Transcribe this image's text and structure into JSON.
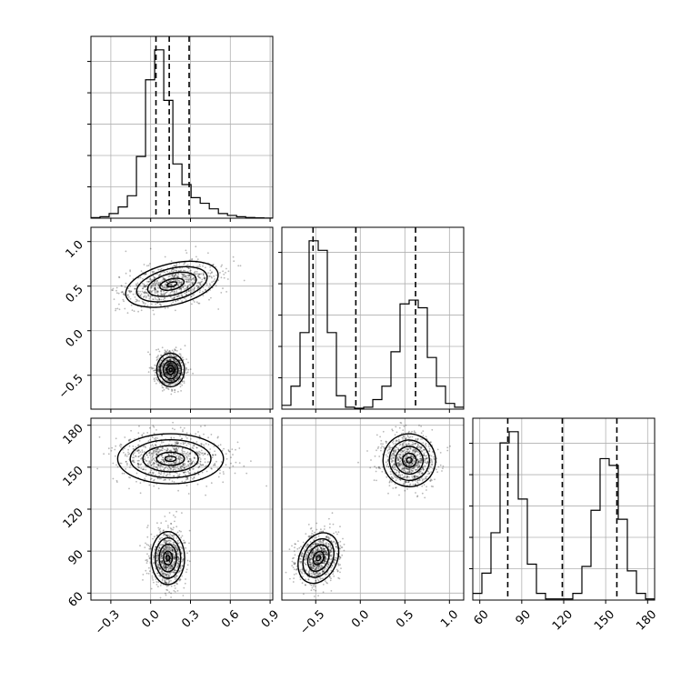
{
  "chart_data": {
    "type": "corner",
    "grid": true,
    "parameters": [
      {
        "index": 0,
        "range": [
          -0.45,
          0.92
        ],
        "ticks": [
          -0.3,
          0.0,
          0.3,
          0.6,
          0.9
        ],
        "tick_labels": [
          "−0.3",
          "0.0",
          "0.3",
          "0.6",
          "0.9"
        ],
        "quantiles": [
          0.04,
          0.14,
          0.29
        ],
        "histogram": {
          "bin_edges": [
            -0.45,
            -0.3814,
            -0.3128,
            -0.2442,
            -0.1756,
            -0.107,
            -0.0384,
            0.0302,
            0.0988,
            0.1674,
            0.236,
            0.3046,
            0.3732,
            0.4418,
            0.5104,
            0.579,
            0.6476,
            0.7162,
            0.7848,
            0.8534,
            0.922
          ],
          "counts": [
            0.3,
            0.8,
            2.5,
            6,
            12,
            33,
            74,
            90,
            63,
            29,
            18,
            11,
            8,
            5,
            2.5,
            1.5,
            0.8,
            0.4,
            0.2,
            0.1
          ]
        }
      },
      {
        "index": 1,
        "range": [
          -0.88,
          1.16
        ],
        "ticks": [
          -0.5,
          0.0,
          0.5,
          1.0
        ],
        "tick_labels": [
          "−0.5",
          "0.0",
          "0.5",
          "1.0"
        ],
        "quantiles": [
          -0.53,
          -0.05,
          0.62
        ],
        "histogram": {
          "bin_edges": [
            -0.88,
            -0.778,
            -0.676,
            -0.574,
            -0.472,
            -0.37,
            -0.268,
            -0.166,
            -0.064,
            0.038,
            0.14,
            0.242,
            0.344,
            0.446,
            0.548,
            0.65,
            0.752,
            0.854,
            0.956,
            1.058,
            1.16
          ],
          "counts": [
            2,
            12,
            40,
            88,
            83,
            40,
            7,
            1,
            0.5,
            1,
            5,
            12,
            30,
            55,
            57,
            53,
            27,
            12,
            3,
            1
          ]
        }
      },
      {
        "index": 2,
        "range": [
          55,
          185
        ],
        "ticks": [
          60,
          90,
          120,
          150,
          180
        ],
        "tick_labels": [
          "60",
          "90",
          "120",
          "150",
          "180"
        ],
        "quantiles": [
          80,
          119,
          158
        ],
        "histogram": {
          "bin_edges": [
            55,
            61.5,
            68,
            74.5,
            81,
            87.5,
            94,
            100.5,
            107,
            113.5,
            120,
            126.5,
            133,
            139.5,
            146,
            152.5,
            159,
            165.5,
            172,
            178.5,
            185
          ],
          "counts": [
            3,
            12,
            30,
            70,
            75,
            45,
            16,
            3,
            0.5,
            0.5,
            0.5,
            3,
            15,
            40,
            63,
            60,
            36,
            13,
            3,
            0.5
          ]
        }
      }
    ],
    "pairs": [
      {
        "x_param": 0,
        "y_param": 1,
        "modes": [
          {
            "center": [
              0.16,
              0.52
            ],
            "sigma": [
              0.17,
              0.11
            ],
            "angle_deg": 14
          },
          {
            "center": [
              0.15,
              -0.44
            ],
            "sigma": [
              0.05,
              0.09
            ],
            "angle_deg": 0
          }
        ]
      },
      {
        "x_param": 0,
        "y_param": 2,
        "modes": [
          {
            "center": [
              0.15,
              156
            ],
            "sigma": [
              0.19,
              8.5
            ],
            "angle_deg": 0
          },
          {
            "center": [
              0.13,
              85
            ],
            "sigma": [
              0.06,
              9
            ],
            "angle_deg": 0
          }
        ]
      },
      {
        "x_param": 1,
        "y_param": 2,
        "modes": [
          {
            "center": [
              0.55,
              155
            ],
            "sigma": [
              0.14,
              9
            ],
            "angle_deg": 25
          },
          {
            "center": [
              -0.47,
              85
            ],
            "sigma": [
              0.1,
              9
            ],
            "angle_deg": -25
          }
        ]
      }
    ]
  }
}
